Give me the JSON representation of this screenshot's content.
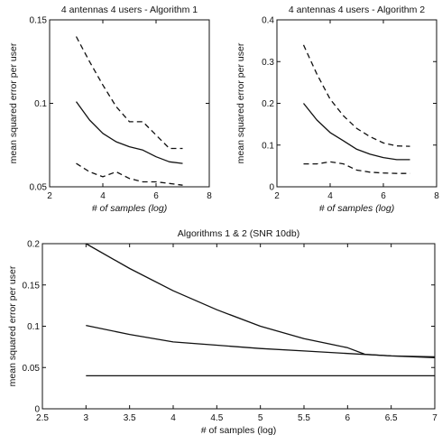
{
  "chart_data": [
    {
      "type": "line",
      "title": "4 antennas 4 users - Algorithm 1",
      "xlabel": "# of samples (log)",
      "ylabel": "mean squared error per user",
      "xlim": [
        2,
        8
      ],
      "ylim": [
        0.05,
        0.15
      ],
      "xticks": [
        "2",
        "4",
        "6",
        "8"
      ],
      "yticks": [
        "0.05",
        "0.1",
        "0.15"
      ],
      "series": [
        {
          "style": "solid",
          "x": [
            3,
            3.5,
            4,
            4.5,
            5,
            5.5,
            6,
            6.5,
            7
          ],
          "y": [
            0.101,
            0.09,
            0.082,
            0.077,
            0.074,
            0.072,
            0.068,
            0.065,
            0.064
          ]
        },
        {
          "style": "dashed",
          "x": [
            3,
            3.5,
            4,
            4.5,
            5,
            5.5,
            6,
            6.5,
            7
          ],
          "y": [
            0.14,
            0.125,
            0.111,
            0.098,
            0.089,
            0.089,
            0.081,
            0.073,
            0.073
          ]
        },
        {
          "style": "dashed",
          "x": [
            3,
            3.5,
            4,
            4.5,
            5,
            5.5,
            6,
            6.5,
            7
          ],
          "y": [
            0.064,
            0.059,
            0.056,
            0.059,
            0.055,
            0.053,
            0.053,
            0.052,
            0.051
          ]
        }
      ]
    },
    {
      "type": "line",
      "title": "4 antennas 4 users - Algorithm 2",
      "xlabel": "# of samples (log)",
      "ylabel": "mean squared error per user",
      "xlim": [
        2,
        8
      ],
      "ylim": [
        0,
        0.4
      ],
      "xticks": [
        "2",
        "4",
        "6",
        "8"
      ],
      "yticks": [
        "0",
        "0.1",
        "0.2",
        "0.3",
        "0.4"
      ],
      "series": [
        {
          "style": "solid",
          "x": [
            3,
            3.5,
            4,
            4.5,
            5,
            5.5,
            6,
            6.5,
            7
          ],
          "y": [
            0.2,
            0.16,
            0.13,
            0.11,
            0.09,
            0.078,
            0.07,
            0.065,
            0.065
          ]
        },
        {
          "style": "dashed",
          "x": [
            3,
            3.5,
            4,
            4.5,
            5,
            5.5,
            6,
            6.5,
            7
          ],
          "y": [
            0.34,
            0.27,
            0.21,
            0.17,
            0.14,
            0.12,
            0.105,
            0.098,
            0.097
          ]
        },
        {
          "style": "dashed",
          "x": [
            3,
            3.5,
            4,
            4.5,
            5,
            5.5,
            6,
            6.5,
            7
          ],
          "y": [
            0.055,
            0.055,
            0.06,
            0.055,
            0.04,
            0.035,
            0.033,
            0.032,
            0.032
          ]
        }
      ]
    },
    {
      "type": "line",
      "title": "Algorithms 1 & 2 (SNR 10db)",
      "xlabel": "# of samples (log)",
      "ylabel": "mean squared error per user",
      "xlim": [
        2.5,
        7
      ],
      "ylim": [
        0,
        0.2
      ],
      "xticks": [
        "2.5",
        "3",
        "3.5",
        "4",
        "4.5",
        "5",
        "5.5",
        "6",
        "6.5",
        "7"
      ],
      "yticks": [
        "0",
        "0.05",
        "0.1",
        "0.15",
        "0.2"
      ],
      "series": [
        {
          "style": "solid",
          "x": [
            3,
            3.5,
            4,
            4.5,
            5,
            5.5,
            6,
            6.2,
            6.5,
            7
          ],
          "y": [
            0.2,
            0.17,
            0.143,
            0.12,
            0.1,
            0.085,
            0.074,
            0.066,
            0.064,
            0.062
          ]
        },
        {
          "style": "solid",
          "x": [
            3,
            3.5,
            4,
            4.5,
            5,
            5.5,
            6,
            6.5,
            7
          ],
          "y": [
            0.101,
            0.09,
            0.081,
            0.077,
            0.073,
            0.07,
            0.067,
            0.064,
            0.063
          ]
        },
        {
          "style": "solid",
          "x": [
            3,
            7
          ],
          "y": [
            0.04,
            0.04
          ]
        }
      ]
    }
  ]
}
